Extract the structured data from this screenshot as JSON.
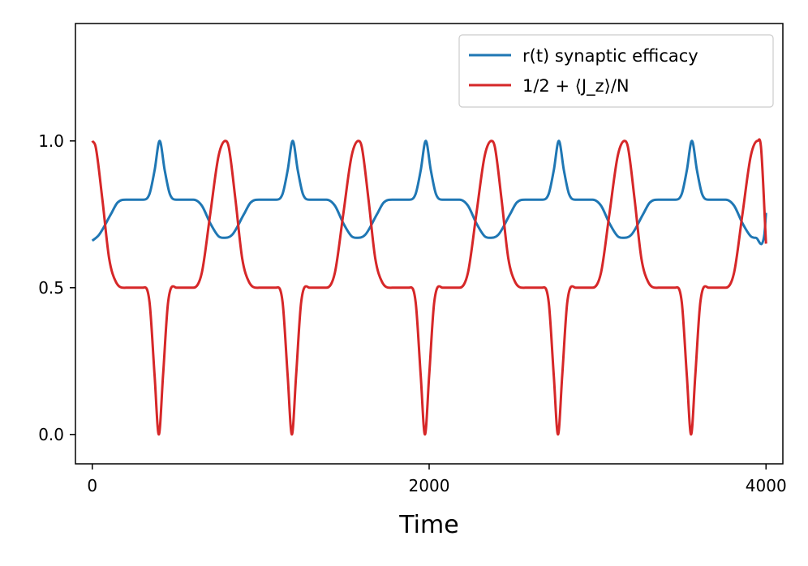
{
  "chart_data": {
    "type": "line",
    "title": "",
    "xlabel": "Time",
    "ylabel": "",
    "xlim": [
      -100,
      4100
    ],
    "ylim": [
      -0.1,
      1.4
    ],
    "xticks": [
      0,
      2000,
      4000
    ],
    "xtick_labels": [
      "0",
      "2000",
      "4000"
    ],
    "yticks": [
      0.0,
      0.5,
      1.0
    ],
    "ytick_labels": [
      "0.0",
      "0.5",
      "1.0"
    ],
    "grid": false,
    "legend_position": "top-right",
    "series": [
      {
        "name": "r(t) synaptic efficacy",
        "color": "#1f77b4",
        "x": [
          0,
          40,
          110,
          150,
          200,
          300,
          340,
          370,
          400,
          430,
          460,
          500,
          600,
          650,
          700,
          750,
          780,
          810,
          850,
          900,
          960,
          1000
        ],
        "values": [
          0.66,
          0.68,
          0.75,
          0.79,
          0.8,
          0.8,
          0.82,
          0.9,
          1.0,
          0.9,
          0.82,
          0.8,
          0.8,
          0.78,
          0.72,
          0.675,
          0.67,
          0.675,
          0.72,
          0.78,
          0.8,
          0.8
        ],
        "period": 790,
        "x_end": 4000,
        "end_value": 0.755
      },
      {
        "name": "1/2 + ⟨J_z⟩/N",
        "color": "#d62728",
        "x": [
          0,
          20,
          60,
          100,
          140,
          200,
          300,
          340,
          370,
          395,
          420,
          450,
          500,
          600,
          650,
          700,
          750,
          790,
          830,
          880,
          940,
          1000
        ],
        "values": [
          1.0,
          0.98,
          0.8,
          0.6,
          0.52,
          0.5,
          0.5,
          0.45,
          0.2,
          0.0,
          0.2,
          0.45,
          0.5,
          0.5,
          0.55,
          0.75,
          0.95,
          1.0,
          0.95,
          0.75,
          0.55,
          0.5
        ],
        "period": 790,
        "x_end": 4000,
        "end_value": 0.65
      }
    ]
  }
}
